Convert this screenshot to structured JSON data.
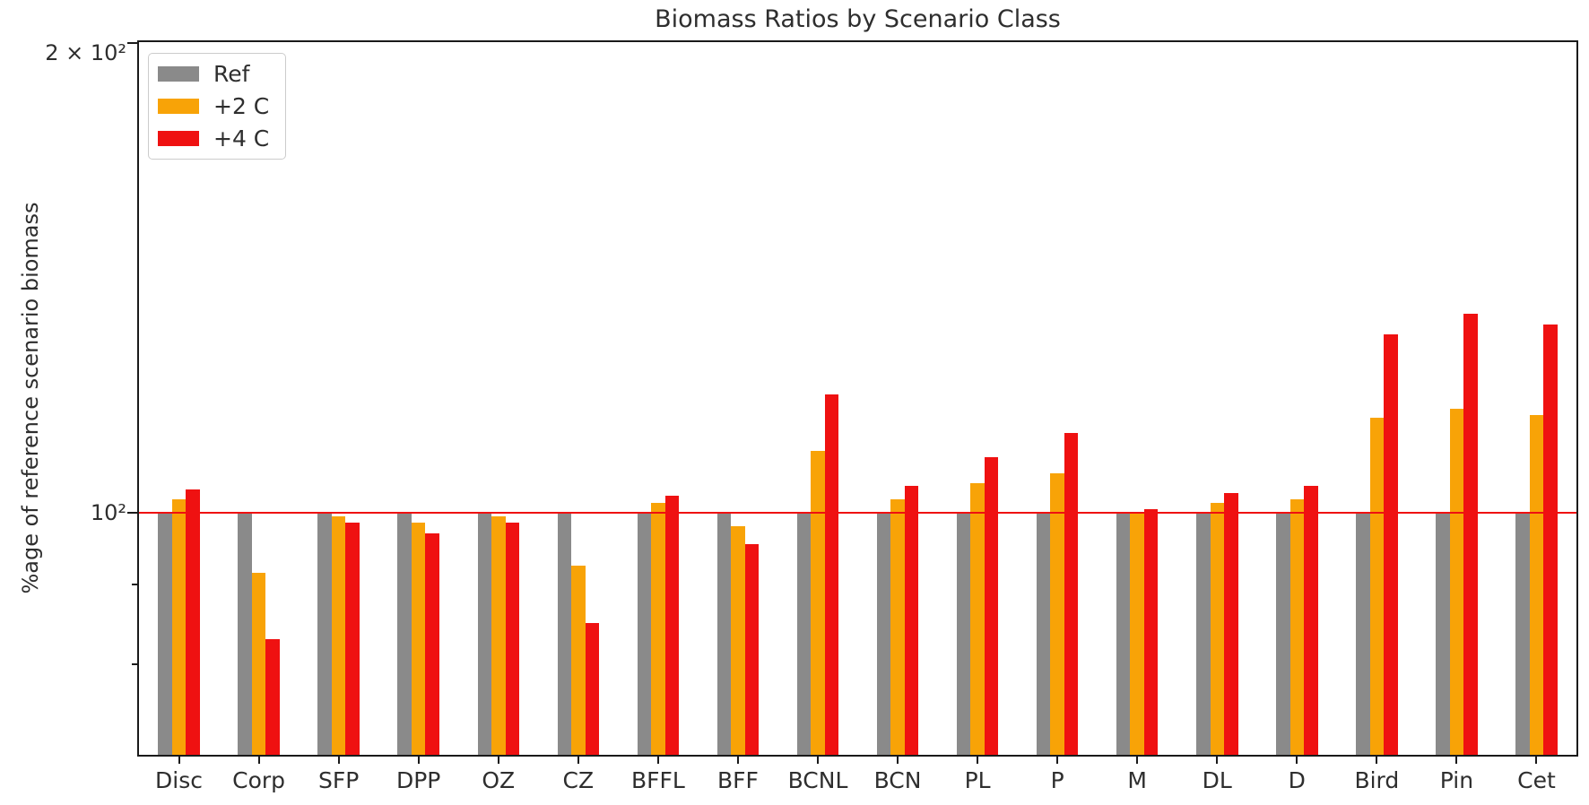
{
  "chart_data": {
    "type": "bar",
    "title": "Biomass Ratios by Scenario Class",
    "ylabel": "%age of reference scenario biomass",
    "xlabel": "",
    "yscale": "log",
    "ylim": [
      70,
      200
    ],
    "grid": false,
    "legend_position": "upper left",
    "categories": [
      "Disc",
      "Corp",
      "SFP",
      "DPP",
      "OZ",
      "CZ",
      "BFFL",
      "BFF",
      "BCNL",
      "BCN",
      "PL",
      "P",
      "M",
      "DL",
      "D",
      "Bird",
      "Pin",
      "Cet"
    ],
    "series": [
      {
        "name": "Ref",
        "color": "#8a8a8a",
        "values": [
          100,
          100,
          100,
          100,
          100,
          100,
          100,
          100,
          100,
          100,
          100,
          100,
          100,
          100,
          100,
          100,
          100,
          100
        ]
      },
      {
        "name": "+2 C",
        "color": "#f8a307",
        "values": [
          102,
          91.5,
          99.5,
          98.5,
          99.5,
          92.5,
          101.5,
          98,
          109.5,
          102,
          104.5,
          106,
          100,
          101.5,
          102,
          115,
          116.5,
          115.5
        ]
      },
      {
        "name": "+4 C",
        "color": "#ef1111",
        "values": [
          103.5,
          83,
          98.5,
          97,
          98.5,
          85,
          102.5,
          95.5,
          119,
          104,
          108.5,
          112.5,
          100.5,
          103,
          104,
          130,
          134,
          132
        ]
      }
    ],
    "reference_line": {
      "value": 100,
      "color": "#ef1111"
    },
    "yticks": [
      {
        "label": "2 × 10²",
        "value": 200
      },
      {
        "label": "10²",
        "value": 100
      }
    ],
    "minor_yticks": [
      90,
      80
    ],
    "axis_color": "#1a1a1a"
  }
}
